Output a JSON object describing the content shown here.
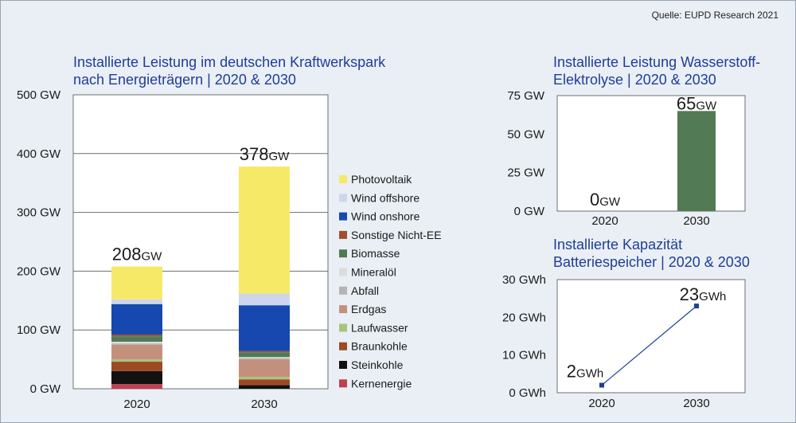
{
  "source": "Quelle: EUPD Research 2021",
  "chart_data": [
    {
      "type": "bar",
      "stacked": true,
      "title_line1": "Installierte Leistung im deutschen Kraftwerkspark",
      "title_line2": "nach Energieträgern | 2020 & 2030",
      "categories": [
        "2020",
        "2030"
      ],
      "yticks": [
        "0 GW",
        "100 GW",
        "200 GW",
        "300 GW",
        "400 GW",
        "500 GW"
      ],
      "ylim": [
        0,
        500
      ],
      "unit": "GW",
      "totals": [
        208,
        378
      ],
      "legend_position": "right",
      "series": [
        {
          "name": "Kernenergie",
          "color": "#c0404f",
          "values": [
            8,
            0
          ]
        },
        {
          "name": "Steinkohle",
          "color": "#111111",
          "values": [
            22,
            6
          ]
        },
        {
          "name": "Braunkohle",
          "color": "#9b4a24",
          "values": [
            16,
            10
          ]
        },
        {
          "name": "Laufwasser",
          "color": "#a9c47a",
          "values": [
            4,
            4
          ]
        },
        {
          "name": "Erdgas",
          "color": "#c4907e",
          "values": [
            25,
            30
          ]
        },
        {
          "name": "Abfall",
          "color": "#b4b4b4",
          "values": [
            2,
            2
          ]
        },
        {
          "name": "Mineralöl",
          "color": "#dcdcdc",
          "values": [
            3,
            2
          ]
        },
        {
          "name": "Biomasse",
          "color": "#4f7a55",
          "values": [
            9,
            8
          ]
        },
        {
          "name": "Sonstige Nicht-EE",
          "color": "#a0502a",
          "values": [
            3,
            2
          ]
        },
        {
          "name": "Wind onshore",
          "color": "#1648b0",
          "values": [
            52,
            78
          ]
        },
        {
          "name": "Wind offshore",
          "color": "#cdd6ec",
          "values": [
            8,
            20
          ]
        },
        {
          "name": "Photovoltaik",
          "color": "#f7e968",
          "values": [
            56,
            216
          ]
        }
      ]
    },
    {
      "type": "bar",
      "title_line1": "Installierte Leistung Wasserstoff-",
      "title_line2": "Elektrolyse | 2020 & 2030",
      "categories": [
        "2020",
        "2030"
      ],
      "values": [
        0,
        65
      ],
      "unit": "GW",
      "color": "#527a55",
      "yticks": [
        "0 GW",
        "25 GW",
        "50 GW",
        "75 GW"
      ],
      "ylim": [
        0,
        75
      ]
    },
    {
      "type": "line",
      "title_line1": "Installierte Kapazität",
      "title_line2": "Batteriespeicher | 2020 & 2030",
      "categories": [
        "2020",
        "2030"
      ],
      "values": [
        2,
        23
      ],
      "unit": "GWh",
      "color": "#1f3d99",
      "yticks": [
        "0 GWh",
        "10 GWh",
        "20 GWh",
        "30 GWh"
      ],
      "ylim": [
        0,
        30
      ]
    }
  ]
}
